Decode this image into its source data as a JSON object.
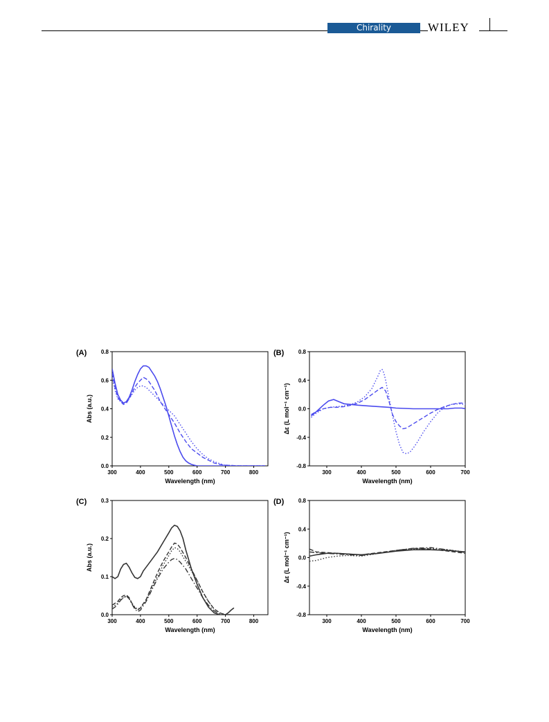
{
  "header": {
    "journal": "Chirality",
    "publisher": "WILEY"
  },
  "figure": {
    "panels": [
      {
        "label": "(A)",
        "xlabel": "Wavelength (nm)",
        "ylabel": "Abs (a.u.)",
        "color": "#4a4aee",
        "chart_data": {
          "type": "line",
          "xlim": [
            300,
            850
          ],
          "ylim": [
            0,
            0.8
          ],
          "xticks": [
            300,
            400,
            500,
            600,
            700,
            800
          ],
          "yticks": [
            0.0,
            0.2,
            0.4,
            0.6,
            0.8
          ],
          "series": [
            {
              "style": "solid",
              "x": [
                300,
                310,
                320,
                330,
                340,
                350,
                360,
                370,
                380,
                390,
                400,
                410,
                420,
                430,
                440,
                450,
                460,
                470,
                480,
                490,
                500,
                510,
                520,
                530,
                540,
                550,
                560,
                570,
                580,
                590,
                600,
                620,
                650,
                700,
                750,
                800,
                840
              ],
              "y": [
                0.68,
                0.58,
                0.5,
                0.46,
                0.44,
                0.45,
                0.48,
                0.53,
                0.59,
                0.64,
                0.68,
                0.7,
                0.7,
                0.69,
                0.66,
                0.63,
                0.59,
                0.54,
                0.48,
                0.42,
                0.35,
                0.28,
                0.21,
                0.15,
                0.1,
                0.06,
                0.035,
                0.02,
                0.01,
                0.005,
                0.0,
                0.0,
                0.0,
                0.0,
                0.0,
                0.0,
                0.0
              ]
            },
            {
              "style": "dashed",
              "x": [
                300,
                310,
                320,
                330,
                340,
                350,
                360,
                370,
                380,
                390,
                400,
                410,
                420,
                430,
                440,
                450,
                460,
                470,
                480,
                490,
                500,
                520,
                540,
                560,
                580,
                600,
                620,
                640,
                660,
                680,
                700,
                750,
                800,
                840
              ],
              "y": [
                0.65,
                0.55,
                0.48,
                0.45,
                0.43,
                0.44,
                0.47,
                0.51,
                0.55,
                0.58,
                0.6,
                0.62,
                0.61,
                0.59,
                0.56,
                0.53,
                0.49,
                0.45,
                0.42,
                0.39,
                0.36,
                0.3,
                0.23,
                0.17,
                0.12,
                0.09,
                0.06,
                0.04,
                0.02,
                0.01,
                0.005,
                0.0,
                0.0,
                0.0
              ]
            },
            {
              "style": "dotted",
              "x": [
                300,
                310,
                320,
                330,
                340,
                350,
                360,
                370,
                380,
                390,
                400,
                410,
                420,
                430,
                440,
                450,
                460,
                470,
                480,
                490,
                500,
                520,
                540,
                560,
                580,
                600,
                620,
                640,
                660,
                680,
                700,
                750,
                800,
                840
              ],
              "y": [
                0.62,
                0.53,
                0.47,
                0.45,
                0.44,
                0.45,
                0.47,
                0.5,
                0.53,
                0.55,
                0.56,
                0.56,
                0.55,
                0.53,
                0.51,
                0.49,
                0.47,
                0.45,
                0.43,
                0.41,
                0.39,
                0.35,
                0.29,
                0.23,
                0.17,
                0.12,
                0.08,
                0.05,
                0.03,
                0.015,
                0.005,
                0.0,
                0.0,
                0.0
              ]
            }
          ]
        }
      },
      {
        "label": "(B)",
        "xlabel": "Wavelength (nm)",
        "ylabel": "Δε (L mol⁻¹ cm⁻¹)",
        "color": "#4a4aee",
        "chart_data": {
          "type": "line",
          "xlim": [
            250,
            700
          ],
          "ylim": [
            -0.8,
            0.8
          ],
          "xticks": [
            300,
            400,
            500,
            600,
            700
          ],
          "yticks": [
            -0.8,
            -0.4,
            0.0,
            0.4,
            0.8
          ],
          "series": [
            {
              "style": "solid",
              "x": [
                255,
                270,
                290,
                305,
                320,
                335,
                350,
                370,
                390,
                420,
                450,
                480,
                500,
                550,
                600,
                650,
                670,
                690,
                700
              ],
              "y": [
                -0.1,
                -0.04,
                0.05,
                0.11,
                0.13,
                0.1,
                0.07,
                0.06,
                0.05,
                0.04,
                0.03,
                0.02,
                0.01,
                0.0,
                0.0,
                0.0,
                0.01,
                0.01,
                0.0
              ]
            },
            {
              "style": "dashed",
              "x": [
                255,
                270,
                290,
                310,
                330,
                350,
                370,
                390,
                410,
                430,
                450,
                460,
                470,
                480,
                490,
                500,
                510,
                520,
                530,
                540,
                560,
                580,
                600,
                620,
                640,
                660,
                680,
                700
              ],
              "y": [
                -0.08,
                -0.04,
                0.0,
                0.02,
                0.02,
                0.03,
                0.05,
                0.08,
                0.13,
                0.2,
                0.27,
                0.3,
                0.25,
                0.1,
                -0.08,
                -0.18,
                -0.24,
                -0.28,
                -0.27,
                -0.24,
                -0.18,
                -0.12,
                -0.06,
                -0.01,
                0.03,
                0.06,
                0.08,
                0.08
              ]
            },
            {
              "style": "dotted",
              "x": [
                255,
                270,
                290,
                310,
                330,
                350,
                370,
                390,
                410,
                430,
                440,
                450,
                455,
                460,
                465,
                470,
                480,
                490,
                500,
                510,
                520,
                530,
                540,
                550,
                560,
                580,
                600,
                620,
                640,
                660,
                680,
                700
              ],
              "y": [
                -0.12,
                -0.06,
                0.0,
                0.02,
                0.03,
                0.04,
                0.06,
                0.1,
                0.17,
                0.28,
                0.38,
                0.48,
                0.54,
                0.55,
                0.5,
                0.4,
                0.15,
                -0.1,
                -0.32,
                -0.5,
                -0.61,
                -0.63,
                -0.61,
                -0.55,
                -0.48,
                -0.32,
                -0.18,
                -0.06,
                0.02,
                0.06,
                0.07,
                0.06
              ]
            }
          ]
        }
      },
      {
        "label": "(C)",
        "xlabel": "Wavelength (nm)",
        "ylabel": "Abs (a.u.)",
        "color": "#333333",
        "chart_data": {
          "type": "line",
          "xlim": [
            300,
            850
          ],
          "ylim": [
            0,
            0.3
          ],
          "xticks": [
            300,
            400,
            500,
            600,
            700,
            800
          ],
          "yticks": [
            0.0,
            0.1,
            0.2,
            0.3
          ],
          "series": [
            {
              "style": "solid",
              "x": [
                300,
                310,
                320,
                330,
                340,
                350,
                360,
                370,
                380,
                390,
                400,
                410,
                420,
                440,
                460,
                480,
                500,
                510,
                520,
                530,
                540,
                550,
                560,
                580,
                600,
                620,
                640,
                660,
                680,
                690,
                700,
                710,
                720,
                730
              ],
              "y": [
                0.1,
                0.095,
                0.1,
                0.12,
                0.132,
                0.135,
                0.125,
                0.11,
                0.098,
                0.095,
                0.1,
                0.115,
                0.125,
                0.145,
                0.165,
                0.19,
                0.215,
                0.228,
                0.235,
                0.232,
                0.22,
                0.2,
                0.17,
                0.12,
                0.08,
                0.045,
                0.02,
                0.005,
                0.0,
                0.0,
                0.0,
                0.005,
                0.012,
                0.018
              ]
            },
            {
              "style": "dashed",
              "x": [
                300,
                310,
                320,
                330,
                340,
                350,
                360,
                370,
                380,
                390,
                400,
                420,
                440,
                460,
                480,
                500,
                510,
                520,
                530,
                540,
                560,
                580,
                600,
                620,
                640,
                660,
                680,
                700,
                720
              ],
              "y": [
                0.025,
                0.03,
                0.035,
                0.045,
                0.05,
                0.052,
                0.045,
                0.03,
                0.018,
                0.012,
                0.018,
                0.04,
                0.075,
                0.11,
                0.14,
                0.165,
                0.178,
                0.188,
                0.186,
                0.176,
                0.15,
                0.12,
                0.09,
                0.06,
                0.035,
                0.015,
                0.005,
                0.0,
                0.0
              ]
            },
            {
              "style": "dotted",
              "x": [
                300,
                310,
                320,
                330,
                340,
                350,
                360,
                370,
                380,
                390,
                400,
                420,
                440,
                460,
                480,
                500,
                510,
                520,
                530,
                540,
                560,
                580,
                600,
                620,
                640,
                660,
                680,
                700,
                720
              ],
              "y": [
                0.02,
                0.025,
                0.03,
                0.04,
                0.045,
                0.048,
                0.042,
                0.03,
                0.02,
                0.015,
                0.018,
                0.038,
                0.07,
                0.1,
                0.13,
                0.155,
                0.168,
                0.176,
                0.174,
                0.165,
                0.14,
                0.115,
                0.09,
                0.06,
                0.035,
                0.015,
                0.005,
                0.0,
                0.0
              ]
            },
            {
              "style": "dashdot",
              "x": [
                300,
                310,
                320,
                330,
                340,
                350,
                360,
                370,
                380,
                390,
                400,
                420,
                440,
                460,
                480,
                500,
                510,
                520,
                530,
                540,
                560,
                580,
                600,
                620,
                640,
                660,
                680,
                700,
                720
              ],
              "y": [
                0.015,
                0.02,
                0.028,
                0.038,
                0.045,
                0.05,
                0.042,
                0.028,
                0.015,
                0.008,
                0.012,
                0.035,
                0.065,
                0.095,
                0.12,
                0.138,
                0.145,
                0.148,
                0.145,
                0.138,
                0.12,
                0.095,
                0.07,
                0.045,
                0.025,
                0.01,
                0.002,
                0.0,
                0.0
              ]
            }
          ]
        }
      },
      {
        "label": "(D)",
        "xlabel": "Wavelength (nm)",
        "ylabel": "Δε (L mol⁻¹ cm⁻¹)",
        "color": "#333333",
        "chart_data": {
          "type": "line",
          "xlim": [
            250,
            700
          ],
          "ylim": [
            -0.8,
            0.8
          ],
          "xticks": [
            300,
            400,
            500,
            600,
            700
          ],
          "yticks": [
            -0.8,
            -0.4,
            0.0,
            0.4,
            0.8
          ],
          "series": [
            {
              "style": "solid",
              "x": [
                250,
                270,
                300,
                330,
                360,
                400,
                450,
                500,
                550,
                600,
                650,
                700
              ],
              "y": [
                0.02,
                0.04,
                0.06,
                0.06,
                0.05,
                0.04,
                0.06,
                0.09,
                0.11,
                0.11,
                0.1,
                0.08
              ]
            },
            {
              "style": "dashed",
              "x": [
                250,
                270,
                300,
                330,
                360,
                400,
                450,
                500,
                550,
                600,
                650,
                700
              ],
              "y": [
                0.12,
                0.08,
                0.07,
                0.06,
                0.05,
                0.04,
                0.07,
                0.1,
                0.13,
                0.12,
                0.09,
                0.06
              ]
            },
            {
              "style": "dotted",
              "x": [
                250,
                270,
                300,
                330,
                360,
                400,
                450,
                500,
                550,
                600,
                650,
                700
              ],
              "y": [
                -0.05,
                -0.04,
                0.0,
                0.02,
                0.03,
                0.02,
                0.06,
                0.1,
                0.12,
                0.13,
                0.11,
                0.08
              ]
            },
            {
              "style": "dashdot",
              "x": [
                250,
                270,
                300,
                330,
                360,
                400,
                450,
                500,
                550,
                600,
                650,
                700
              ],
              "y": [
                0.08,
                0.07,
                0.06,
                0.05,
                0.04,
                0.03,
                0.06,
                0.1,
                0.13,
                0.14,
                0.11,
                0.07
              ]
            }
          ]
        }
      }
    ]
  }
}
